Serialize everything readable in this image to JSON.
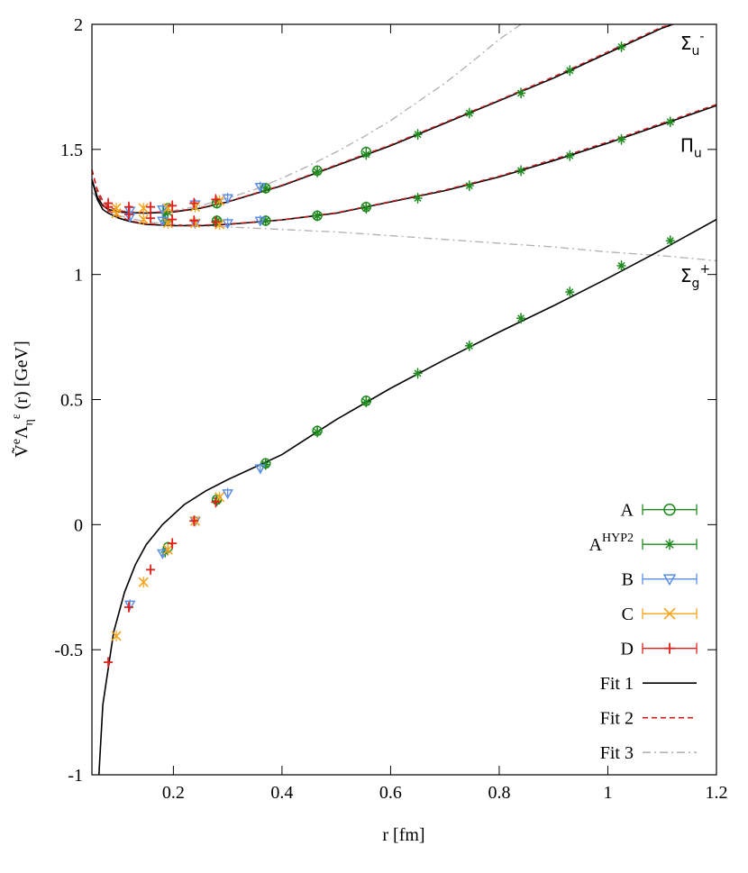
{
  "chart_data": {
    "type": "line",
    "xlabel": "r  [fm]",
    "ylabel": {
      "tilde_v": "Ṽ",
      "sup_e": "e",
      "lambda": "Λ",
      "sub_eta": "η",
      "sup_eps": "ε",
      "rest": "(r)  [GeV]"
    },
    "xlim": [
      0.05,
      1.2
    ],
    "ylim": [
      -1,
      2
    ],
    "xticks": [
      0.2,
      0.4,
      0.6,
      0.8,
      1,
      1.2
    ],
    "xtick_labels": [
      "0.2",
      "0.4",
      "0.6",
      "0.8",
      "1",
      "1.2"
    ],
    "yticks": [
      -1,
      -0.5,
      0,
      0.5,
      1,
      1.5,
      2
    ],
    "ytick_labels": [
      "-1",
      "-0.5",
      "0",
      "0.5",
      "1",
      "1.5",
      "2"
    ],
    "grid": false,
    "legend_position": "bottom-right",
    "curve_labels": [
      {
        "base": "Σ",
        "sub": "u",
        "sup": "-",
        "r": 1.15,
        "v": 1.9
      },
      {
        "base": "Π",
        "sub": "u",
        "sup": "",
        "r": 1.15,
        "v": 1.49
      },
      {
        "base": "Σ",
        "sub": "g",
        "sup": "+",
        "r": 1.15,
        "v": 0.97
      }
    ],
    "colors": {
      "A": "#1f8a1f",
      "A_HYP2": "#1f8a1f",
      "B": "#5b8ee6",
      "C": "#f5a31a",
      "D": "#e3201b",
      "fit1": "#000000",
      "fit2": "#cc2222",
      "fit3": "#b4b4b4"
    },
    "data_series": [
      {
        "name": "A",
        "marker": "circle",
        "points": [
          [
            0.19,
            -0.09
          ],
          [
            0.28,
            0.1
          ],
          [
            0.37,
            0.245
          ],
          [
            0.465,
            0.375
          ],
          [
            0.555,
            0.495
          ],
          [
            0.19,
            1.225
          ],
          [
            0.28,
            1.215
          ],
          [
            0.37,
            1.215
          ],
          [
            0.465,
            1.235
          ],
          [
            0.555,
            1.27
          ],
          [
            0.19,
            1.265
          ],
          [
            0.28,
            1.285
          ],
          [
            0.37,
            1.345
          ],
          [
            0.465,
            1.415
          ],
          [
            0.555,
            1.49
          ]
        ]
      },
      {
        "name": "A^HYP2",
        "marker": "asterisk",
        "points": [
          [
            0.185,
            -0.11
          ],
          [
            0.28,
            0.095
          ],
          [
            0.37,
            0.24
          ],
          [
            0.465,
            0.37
          ],
          [
            0.555,
            0.49
          ],
          [
            0.65,
            0.605
          ],
          [
            0.745,
            0.715
          ],
          [
            0.84,
            0.825
          ],
          [
            0.93,
            0.93
          ],
          [
            1.025,
            1.035
          ],
          [
            1.115,
            1.135
          ],
          [
            0.185,
            1.215
          ],
          [
            0.28,
            1.215
          ],
          [
            0.37,
            1.215
          ],
          [
            0.465,
            1.235
          ],
          [
            0.555,
            1.265
          ],
          [
            0.65,
            1.305
          ],
          [
            0.745,
            1.355
          ],
          [
            0.84,
            1.415
          ],
          [
            0.93,
            1.475
          ],
          [
            1.025,
            1.54
          ],
          [
            1.115,
            1.61
          ],
          [
            0.185,
            1.245
          ],
          [
            0.28,
            1.29
          ],
          [
            0.37,
            1.345
          ],
          [
            0.465,
            1.41
          ],
          [
            0.555,
            1.48
          ],
          [
            0.65,
            1.56
          ],
          [
            0.745,
            1.645
          ],
          [
            0.84,
            1.725
          ],
          [
            0.93,
            1.815
          ],
          [
            1.025,
            1.91
          ]
        ]
      },
      {
        "name": "B",
        "marker": "triangle-down",
        "points": [
          [
            0.12,
            -0.32
          ],
          [
            0.18,
            -0.115
          ],
          [
            0.24,
            0.015
          ],
          [
            0.3,
            0.125
          ],
          [
            0.36,
            0.225
          ],
          [
            0.12,
            1.23
          ],
          [
            0.18,
            1.215
          ],
          [
            0.24,
            1.205
          ],
          [
            0.3,
            1.205
          ],
          [
            0.36,
            1.215
          ],
          [
            0.12,
            1.255
          ],
          [
            0.18,
            1.26
          ],
          [
            0.24,
            1.28
          ],
          [
            0.3,
            1.305
          ],
          [
            0.36,
            1.35
          ]
        ]
      },
      {
        "name": "C",
        "marker": "x",
        "points": [
          [
            0.095,
            -0.445
          ],
          [
            0.145,
            -0.23
          ],
          [
            0.19,
            -0.1
          ],
          [
            0.24,
            0.015
          ],
          [
            0.285,
            0.11
          ],
          [
            0.095,
            1.245
          ],
          [
            0.145,
            1.22
          ],
          [
            0.19,
            1.205
          ],
          [
            0.24,
            1.205
          ],
          [
            0.285,
            1.2
          ],
          [
            0.095,
            1.265
          ],
          [
            0.145,
            1.265
          ],
          [
            0.19,
            1.265
          ],
          [
            0.24,
            1.27
          ],
          [
            0.285,
            1.295
          ]
        ]
      },
      {
        "name": "D",
        "marker": "plus",
        "points": [
          [
            0.08,
            -0.55
          ],
          [
            0.118,
            -0.33
          ],
          [
            0.158,
            -0.18
          ],
          [
            0.198,
            -0.075
          ],
          [
            0.238,
            0.015
          ],
          [
            0.278,
            0.09
          ],
          [
            0.08,
            1.27
          ],
          [
            0.118,
            1.24
          ],
          [
            0.158,
            1.225
          ],
          [
            0.198,
            1.22
          ],
          [
            0.238,
            1.215
          ],
          [
            0.278,
            1.21
          ],
          [
            0.08,
            1.285
          ],
          [
            0.118,
            1.27
          ],
          [
            0.158,
            1.27
          ],
          [
            0.198,
            1.275
          ],
          [
            0.238,
            1.285
          ],
          [
            0.278,
            1.3
          ]
        ]
      }
    ],
    "fit_series": [
      {
        "name": "Fit 1",
        "style": "solid",
        "lines": [
          {
            "x": [
              0.05,
              0.07,
              0.09,
              0.11,
              0.13,
              0.15,
              0.18,
              0.22,
              0.26,
              0.3,
              0.35,
              0.4,
              0.5,
              0.6,
              0.7,
              0.8,
              0.9,
              1.0,
              1.1,
              1.2
            ],
            "y": [
              -1.5,
              -0.72,
              -0.43,
              -0.27,
              -0.16,
              -0.08,
              0.0,
              0.08,
              0.135,
              0.18,
              0.23,
              0.28,
              0.42,
              0.545,
              0.66,
              0.77,
              0.875,
              0.985,
              1.1,
              1.22
            ]
          },
          {
            "x": [
              0.05,
              0.06,
              0.07,
              0.08,
              0.1,
              0.12,
              0.15,
              0.2,
              0.25,
              0.3,
              0.4,
              0.5,
              0.6,
              0.7,
              0.8,
              0.9,
              1.0,
              1.1,
              1.2
            ],
            "y": [
              1.38,
              1.3,
              1.26,
              1.245,
              1.225,
              1.212,
              1.2,
              1.195,
              1.195,
              1.2,
              1.218,
              1.245,
              1.29,
              1.335,
              1.39,
              1.455,
              1.525,
              1.6,
              1.675
            ]
          },
          {
            "x": [
              0.05,
              0.06,
              0.07,
              0.08,
              0.1,
              0.12,
              0.15,
              0.2,
              0.25,
              0.3,
              0.4,
              0.5,
              0.6,
              0.7,
              0.8,
              0.9,
              1.0,
              1.1,
              1.12
            ],
            "y": [
              1.38,
              1.31,
              1.275,
              1.26,
              1.25,
              1.247,
              1.245,
              1.25,
              1.265,
              1.29,
              1.355,
              1.435,
              1.515,
              1.605,
              1.695,
              1.785,
              1.885,
              1.985,
              2.0
            ]
          }
        ]
      },
      {
        "name": "Fit 2",
        "style": "dashed",
        "lines": [
          {
            "x": [
              0.05,
              0.06,
              0.07,
              0.08,
              0.1,
              0.12,
              0.15,
              0.2,
              0.25,
              0.3,
              0.4,
              0.5,
              0.6,
              0.7,
              0.8,
              0.9,
              1.0,
              1.1,
              1.2
            ],
            "y": [
              1.42,
              1.33,
              1.28,
              1.255,
              1.232,
              1.215,
              1.203,
              1.197,
              1.197,
              1.202,
              1.219,
              1.247,
              1.292,
              1.338,
              1.393,
              1.46,
              1.53,
              1.605,
              1.68
            ]
          },
          {
            "x": [
              0.05,
              0.06,
              0.07,
              0.08,
              0.1,
              0.12,
              0.15,
              0.2,
              0.25,
              0.3,
              0.4,
              0.5,
              0.6,
              0.7,
              0.8,
              0.9,
              1.0,
              1.1,
              1.12
            ],
            "y": [
              1.42,
              1.34,
              1.295,
              1.27,
              1.255,
              1.25,
              1.248,
              1.252,
              1.267,
              1.292,
              1.357,
              1.438,
              1.518,
              1.608,
              1.698,
              1.79,
              1.89,
              1.99,
              2.0
            ]
          }
        ]
      },
      {
        "name": "Fit 3",
        "style": "dashdot",
        "lines": [
          {
            "x": [
              0.05,
              0.07,
              0.1,
              0.15,
              0.2,
              0.3,
              0.4,
              0.5,
              0.6,
              0.7,
              0.8,
              0.9,
              1.0,
              1.1,
              1.2
            ],
            "y": [
              1.33,
              1.28,
              1.235,
              1.21,
              1.2,
              1.19,
              1.18,
              1.17,
              1.155,
              1.14,
              1.125,
              1.11,
              1.09,
              1.075,
              1.055
            ]
          },
          {
            "x": [
              0.05,
              0.07,
              0.1,
              0.15,
              0.2,
              0.25,
              0.3,
              0.35,
              0.4,
              0.45,
              0.5,
              0.55,
              0.6,
              0.65,
              0.7,
              0.75,
              0.8,
              0.84
            ],
            "y": [
              1.33,
              1.28,
              1.255,
              1.245,
              1.255,
              1.275,
              1.305,
              1.34,
              1.385,
              1.435,
              1.49,
              1.55,
              1.615,
              1.69,
              1.765,
              1.85,
              1.94,
              2.0
            ]
          }
        ]
      }
    ],
    "legend": [
      {
        "key": "A",
        "main": "A",
        "sup": "",
        "marker": "circle",
        "style": "errorbar"
      },
      {
        "key": "A_HYP2",
        "main": "A",
        "sup": "HYP2",
        "marker": "asterisk",
        "style": "errorbar"
      },
      {
        "key": "B",
        "main": "B",
        "sup": "",
        "marker": "triangle-down",
        "style": "errorbar"
      },
      {
        "key": "C",
        "main": "C",
        "sup": "",
        "marker": "x",
        "style": "errorbar"
      },
      {
        "key": "D",
        "main": "D",
        "sup": "",
        "marker": "plus",
        "style": "errorbar"
      },
      {
        "key": "fit1",
        "main": "Fit 1",
        "sup": "",
        "marker": "",
        "style": "solid"
      },
      {
        "key": "fit2",
        "main": "Fit 2",
        "sup": "",
        "marker": "",
        "style": "dashed"
      },
      {
        "key": "fit3",
        "main": "Fit 3",
        "sup": "",
        "marker": "",
        "style": "dashdot"
      }
    ]
  }
}
